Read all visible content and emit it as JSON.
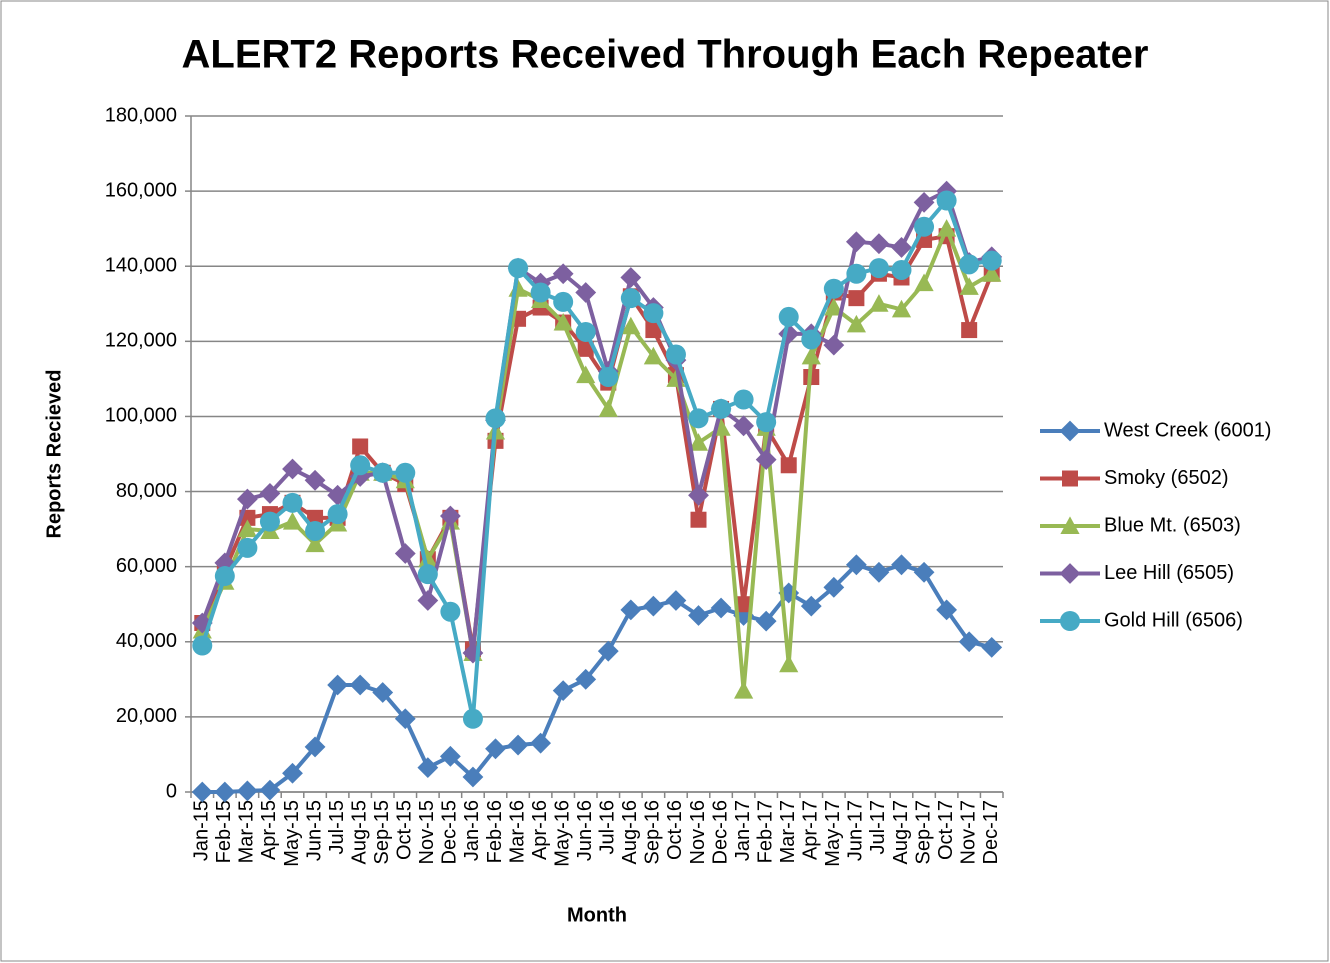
{
  "chart_data": {
    "type": "line",
    "title": "ALERT2 Reports Received Through Each Repeater",
    "x_label": "Month",
    "y_label": "Reports Recieved",
    "categories": [
      "Jan-15",
      "Feb-15",
      "Mar-15",
      "Apr-15",
      "May-15",
      "Jun-15",
      "Jul-15",
      "Aug-15",
      "Sep-15",
      "Oct-15",
      "Nov-15",
      "Dec-15",
      "Jan-16",
      "Feb-16",
      "Mar-16",
      "Apr-16",
      "May-16",
      "Jun-16",
      "Jul-16",
      "Aug-16",
      "Sep-16",
      "Oct-16",
      "Nov-16",
      "Dec-16",
      "Jan-17",
      "Feb-17",
      "Mar-17",
      "Apr-17",
      "May-17",
      "Jun-17",
      "Jul-17",
      "Aug-17",
      "Sep-17",
      "Oct-17",
      "Nov-17",
      "Dec-17"
    ],
    "ylim": [
      0,
      180000
    ],
    "yticks": [
      0,
      {
        "value": 20000,
        "label": "20,000"
      },
      {
        "value": 40000,
        "label": "40,000"
      },
      {
        "value": 60000,
        "label": "60,000"
      },
      {
        "value": 80000,
        "label": "80,000"
      },
      {
        "value": 100000,
        "label": "100,000"
      },
      {
        "value": 120000,
        "label": "120,000"
      },
      {
        "value": 140000,
        "label": "140,000"
      },
      {
        "value": 160000,
        "label": "160,000"
      },
      {
        "value": 180000,
        "label": "180,000"
      }
    ],
    "grid": true,
    "legend": "right",
    "series": [
      {
        "name": "West Creek (6001)",
        "color": "#4a7ebb",
        "marker": "diamond",
        "values": [
          0,
          0,
          300,
          500,
          5000,
          12000,
          28500,
          28500,
          26500,
          19500,
          6500,
          9500,
          4000,
          11500,
          12500,
          13000,
          27000,
          30000,
          37500,
          48500,
          49500,
          51000,
          47000,
          49000,
          47000,
          45500,
          53000,
          49500,
          54500,
          60500,
          58500,
          60500,
          58500,
          48500,
          40000,
          38500
        ]
      },
      {
        "name": "Smoky (6502)",
        "color": "#be4b48",
        "marker": "square",
        "values": [
          45000,
          59000,
          73000,
          74000,
          77000,
          73000,
          73000,
          92000,
          85000,
          82000,
          62000,
          73000,
          38000,
          93500,
          126000,
          129000,
          125000,
          118000,
          109000,
          132000,
          123000,
          111000,
          72500,
          102000,
          50000,
          97000,
          87000,
          110500,
          133000,
          131500,
          138000,
          137000,
          147000,
          148000,
          123000,
          138000
        ]
      },
      {
        "name": "Blue Mt. (6503)",
        "color": "#98b954",
        "marker": "triangle",
        "values": [
          43000,
          56000,
          70000,
          69500,
          72000,
          66000,
          71500,
          85000,
          85000,
          83000,
          62000,
          72000,
          37000,
          96000,
          134000,
          131000,
          125000,
          111000,
          102000,
          124000,
          116000,
          110000,
          93000,
          97000,
          27000,
          97000,
          34000,
          116000,
          129000,
          124500,
          130000,
          128500,
          135500,
          150000,
          134500,
          138000
        ]
      },
      {
        "name": "Lee Hill (6505)",
        "color": "#7d60a0",
        "marker": "diamond",
        "values": [
          45000,
          61000,
          78000,
          79500,
          86000,
          83000,
          79000,
          84000,
          85000,
          63500,
          51000,
          73500,
          37000,
          99000,
          139500,
          135500,
          138000,
          133000,
          112000,
          137000,
          129000,
          115000,
          79000,
          102000,
          97500,
          88500,
          122000,
          122000,
          119000,
          146500,
          146000,
          145000,
          157000,
          160000,
          141000,
          142500
        ]
      },
      {
        "name": "Gold Hill (6506)",
        "color": "#46aac5",
        "marker": "circle",
        "values": [
          39000,
          57500,
          65000,
          72000,
          77000,
          69500,
          74000,
          87000,
          85000,
          85000,
          58000,
          48000,
          19500,
          99500,
          139500,
          133000,
          130500,
          122500,
          110500,
          131500,
          127500,
          116500,
          99500,
          102000,
          104500,
          98500,
          126500,
          120500,
          134000,
          138000,
          139500,
          139000,
          150500,
          157500,
          140500,
          141500
        ]
      }
    ]
  }
}
